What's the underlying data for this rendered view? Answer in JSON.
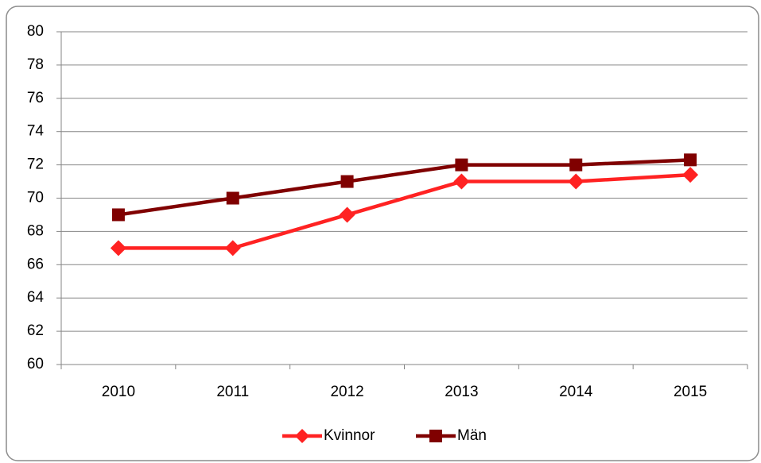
{
  "chart_data": {
    "type": "line",
    "categories": [
      "2010",
      "2011",
      "2012",
      "2013",
      "2014",
      "2015"
    ],
    "series": [
      {
        "name": "Kvinnor",
        "color": "#ff2222",
        "marker": "diamond",
        "values": [
          67,
          67,
          69,
          71,
          71,
          71.4
        ]
      },
      {
        "name": "Män",
        "color": "#800000",
        "marker": "square",
        "values": [
          69,
          70,
          71,
          72,
          72,
          72.3
        ]
      }
    ],
    "ylim": [
      60,
      80
    ],
    "yticks": [
      60,
      62,
      64,
      66,
      68,
      70,
      72,
      74,
      76,
      78,
      80
    ],
    "grid": true,
    "legend": "bottom"
  }
}
